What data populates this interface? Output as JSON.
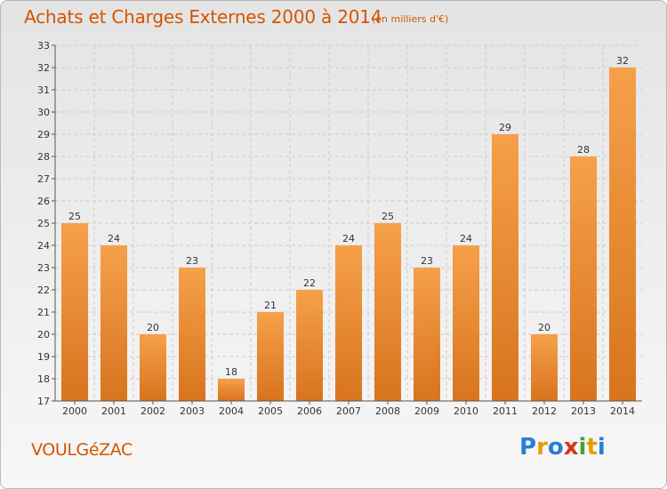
{
  "header": {
    "title": "Achats et Charges Externes 2000 à 2014",
    "subtitle": "(en milliers d'€)"
  },
  "footer": {
    "place": "VOULGéZAC",
    "logo_text": "Proxiti",
    "logo_colors": [
      "#2a7dd4",
      "#e0a100",
      "#2a7dd4",
      "#d4371c",
      "#3fa535",
      "#e0a100",
      "#2a7dd4"
    ]
  },
  "colors": {
    "bar_top": "#f6a04a",
    "bar_bottom": "#d8741e",
    "axis": "#555555",
    "grid": "#cccccc",
    "text": "#333333",
    "accent": "#d45500"
  },
  "chart_data": {
    "type": "bar",
    "title": "Achats et Charges Externes 2000 à 2014",
    "subtitle": "(en milliers d'€)",
    "categories": [
      "2000",
      "2001",
      "2002",
      "2003",
      "2004",
      "2005",
      "2006",
      "2007",
      "2008",
      "2009",
      "2010",
      "2011",
      "2012",
      "2013",
      "2014"
    ],
    "values": [
      25,
      24,
      20,
      23,
      18,
      21,
      22,
      24,
      25,
      23,
      24,
      29,
      20,
      28,
      32
    ],
    "ylim": [
      17,
      33
    ],
    "yticks": [
      17,
      18,
      19,
      20,
      21,
      22,
      23,
      24,
      25,
      26,
      27,
      28,
      29,
      30,
      31,
      32,
      33
    ],
    "xlabel": "",
    "ylabel": "",
    "grid": true,
    "data_labels": true
  }
}
